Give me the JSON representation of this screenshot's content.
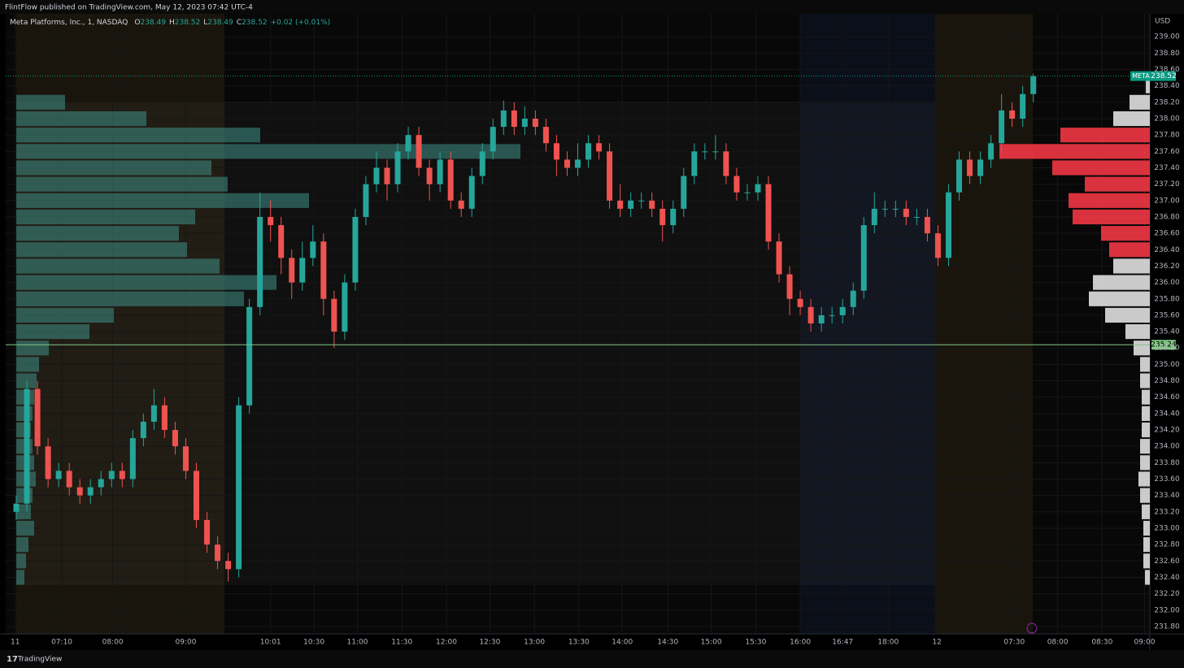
{
  "header": {
    "publisher": "FlintFlow published on TradingView.com, May 12, 2023 07:42 UTC-4"
  },
  "footer": {
    "brand": "TradingView"
  },
  "chart_data": {
    "type": "candlestick",
    "symbol": "Meta Platforms, Inc., 1, NASDAQ",
    "ohlc_legend": [
      {
        "label": "O",
        "value": 238.49
      },
      {
        "label": "H",
        "value": 238.52
      },
      {
        "label": "L",
        "value": 238.49
      },
      {
        "label": "C",
        "value": 238.52
      }
    ],
    "change": "+0.02 (+0.01%)",
    "currency": "USD",
    "open": [
      233.2,
      233.3,
      234.7,
      234.0,
      233.6,
      233.7,
      233.5,
      233.4,
      233.5,
      233.6,
      233.7,
      233.6,
      234.1,
      234.3,
      234.5,
      234.2,
      234.0,
      233.7,
      233.1,
      232.8,
      232.6,
      232.5,
      234.5,
      235.7,
      236.8,
      236.7,
      236.3,
      236.0,
      236.3,
      236.5,
      235.8,
      235.4,
      236.0,
      236.8,
      237.2,
      237.4,
      237.2,
      237.6,
      237.8,
      237.4,
      237.2,
      237.5,
      237.0,
      236.9,
      237.3,
      237.6,
      237.9,
      238.1,
      237.9,
      238.0,
      237.9,
      237.7,
      237.5,
      237.4,
      237.5,
      237.7,
      237.6,
      237.0,
      236.9,
      237.0,
      237.0,
      236.9,
      236.7,
      236.9,
      237.3,
      237.6,
      237.6,
      237.6,
      237.3,
      237.1,
      237.1,
      237.2,
      236.5,
      236.1,
      235.8,
      235.7,
      235.5,
      235.6,
      235.6,
      235.7,
      235.9,
      236.7,
      236.9,
      236.9,
      236.9,
      236.8,
      236.8,
      236.6,
      236.3,
      237.1,
      237.5,
      237.3,
      237.5,
      237.7,
      238.1,
      238.0,
      238.3
    ],
    "high": [
      233.4,
      234.8,
      234.8,
      234.1,
      233.8,
      233.8,
      233.6,
      233.6,
      233.7,
      233.8,
      233.8,
      234.2,
      234.4,
      234.7,
      234.6,
      234.3,
      234.1,
      233.8,
      233.2,
      232.9,
      232.7,
      234.6,
      235.8,
      237.1,
      237.0,
      236.8,
      236.4,
      236.5,
      236.7,
      236.6,
      235.9,
      236.1,
      236.9,
      237.3,
      237.6,
      237.5,
      237.7,
      237.9,
      237.9,
      237.5,
      237.6,
      237.6,
      237.1,
      237.4,
      237.7,
      238.0,
      238.22,
      238.2,
      238.15,
      238.1,
      238.0,
      237.8,
      237.6,
      237.7,
      237.8,
      237.8,
      237.7,
      237.2,
      237.1,
      237.1,
      237.1,
      237.0,
      237.0,
      237.4,
      237.7,
      237.7,
      237.8,
      237.7,
      237.4,
      237.2,
      237.3,
      237.3,
      236.6,
      236.2,
      235.9,
      235.8,
      235.7,
      235.7,
      235.8,
      236.0,
      236.8,
      237.1,
      237.0,
      237.0,
      237.0,
      236.9,
      236.9,
      236.7,
      237.2,
      237.6,
      237.6,
      237.6,
      237.8,
      238.3,
      238.2,
      238.4,
      238.55
    ],
    "low": [
      233.1,
      233.2,
      233.9,
      233.5,
      233.5,
      233.4,
      233.3,
      233.3,
      233.4,
      233.5,
      233.5,
      233.5,
      234.0,
      234.2,
      234.1,
      233.9,
      233.6,
      233.0,
      232.7,
      232.5,
      232.35,
      232.4,
      234.4,
      235.6,
      236.5,
      236.1,
      235.8,
      235.9,
      236.2,
      235.6,
      235.2,
      235.3,
      235.9,
      236.7,
      237.1,
      237.0,
      237.1,
      237.5,
      237.3,
      237.0,
      237.1,
      236.9,
      236.8,
      236.8,
      237.2,
      237.5,
      237.8,
      237.8,
      237.8,
      237.8,
      237.6,
      237.3,
      237.3,
      237.3,
      237.4,
      237.5,
      236.9,
      236.8,
      236.8,
      236.9,
      236.8,
      236.5,
      236.6,
      236.8,
      237.2,
      237.5,
      237.5,
      237.2,
      237.0,
      237.0,
      237.0,
      236.4,
      236.0,
      235.6,
      235.6,
      235.4,
      235.4,
      235.5,
      235.5,
      235.6,
      235.8,
      236.6,
      236.8,
      236.8,
      236.7,
      236.7,
      236.5,
      236.2,
      236.2,
      237.0,
      237.2,
      237.2,
      237.4,
      237.6,
      237.9,
      237.9,
      238.2
    ],
    "close": [
      233.3,
      234.7,
      234.0,
      233.6,
      233.7,
      233.5,
      233.4,
      233.5,
      233.6,
      233.7,
      233.6,
      234.1,
      234.3,
      234.5,
      234.2,
      234.0,
      233.7,
      233.1,
      232.8,
      232.6,
      232.5,
      234.5,
      235.7,
      236.8,
      236.7,
      236.3,
      236.0,
      236.3,
      236.5,
      235.8,
      235.4,
      236.0,
      236.8,
      237.2,
      237.4,
      237.2,
      237.6,
      237.8,
      237.4,
      237.2,
      237.5,
      237.0,
      236.9,
      237.3,
      237.6,
      237.9,
      238.1,
      237.9,
      238.0,
      237.9,
      237.7,
      237.5,
      237.4,
      237.5,
      237.7,
      237.6,
      237.0,
      236.9,
      237.0,
      237.0,
      236.9,
      236.7,
      236.9,
      237.3,
      237.6,
      237.6,
      237.6,
      237.3,
      237.1,
      237.1,
      237.2,
      236.5,
      236.1,
      235.8,
      235.7,
      235.5,
      235.6,
      235.6,
      235.7,
      235.9,
      236.7,
      236.9,
      236.9,
      236.9,
      236.8,
      236.8,
      236.6,
      236.3,
      237.1,
      237.5,
      237.3,
      237.5,
      237.7,
      238.1,
      238.0,
      238.3,
      238.52
    ],
    "up_color": "#26a69a",
    "down_color": "#ef5350",
    "xlim": [
      -1,
      107
    ],
    "xticks": [
      {
        "value": -0.1,
        "label": "11"
      },
      {
        "value": 4.3,
        "label": "07:10"
      },
      {
        "value": 9.1,
        "label": "08:00"
      },
      {
        "value": 16.0,
        "label": "09:00"
      },
      {
        "value": 24.0,
        "label": "10:01"
      },
      {
        "value": 28.1,
        "label": "10:30"
      },
      {
        "value": 32.2,
        "label": "11:00"
      },
      {
        "value": 36.4,
        "label": "11:30"
      },
      {
        "value": 40.6,
        "label": "12:00"
      },
      {
        "value": 44.7,
        "label": "12:30"
      },
      {
        "value": 48.9,
        "label": "13:00"
      },
      {
        "value": 53.1,
        "label": "13:30"
      },
      {
        "value": 57.2,
        "label": "14:00"
      },
      {
        "value": 61.5,
        "label": "14:30"
      },
      {
        "value": 65.6,
        "label": "15:00"
      },
      {
        "value": 69.8,
        "label": "15:30"
      },
      {
        "value": 74.0,
        "label": "16:00"
      },
      {
        "value": 78.0,
        "label": "16:47"
      },
      {
        "value": 82.3,
        "label": "18:00"
      },
      {
        "value": 86.9,
        "label": "12"
      },
      {
        "value": 94.2,
        "label": "07:30"
      },
      {
        "value": 98.3,
        "label": "08:00"
      },
      {
        "value": 102.5,
        "label": "08:30"
      },
      {
        "value": 106.5,
        "label": "09:00"
      }
    ],
    "ylim": [
      231.71,
      239.28
    ],
    "yticks": [
      {
        "value": 231.8,
        "label": "231.80"
      },
      {
        "value": 232.0,
        "label": "232.00"
      },
      {
        "value": 232.2,
        "label": "232.20"
      },
      {
        "value": 232.4,
        "label": "232.40"
      },
      {
        "value": 232.6,
        "label": "232.60"
      },
      {
        "value": 232.8,
        "label": "232.80"
      },
      {
        "value": 233.0,
        "label": "233.00"
      },
      {
        "value": 233.2,
        "label": "233.20"
      },
      {
        "value": 233.4,
        "label": "233.40"
      },
      {
        "value": 233.6,
        "label": "233.60"
      },
      {
        "value": 233.8,
        "label": "233.80"
      },
      {
        "value": 234.0,
        "label": "234.00"
      },
      {
        "value": 234.2,
        "label": "234.20"
      },
      {
        "value": 234.4,
        "label": "234.40"
      },
      {
        "value": 234.6,
        "label": "234.60"
      },
      {
        "value": 234.8,
        "label": "234.80"
      },
      {
        "value": 235.0,
        "label": "235.00"
      },
      {
        "value": 235.2,
        "label": "235.20"
      },
      {
        "value": 235.4,
        "label": "235.40"
      },
      {
        "value": 235.6,
        "label": "235.60"
      },
      {
        "value": 235.8,
        "label": "235.80"
      },
      {
        "value": 236.0,
        "label": "236.00"
      },
      {
        "value": 236.2,
        "label": "236.20"
      },
      {
        "value": 236.4,
        "label": "236.40"
      },
      {
        "value": 236.6,
        "label": "236.60"
      },
      {
        "value": 236.8,
        "label": "236.80"
      },
      {
        "value": 237.0,
        "label": "237.00"
      },
      {
        "value": 237.2,
        "label": "237.20"
      },
      {
        "value": 237.4,
        "label": "237.40"
      },
      {
        "value": 237.6,
        "label": "237.60"
      },
      {
        "value": 237.8,
        "label": "237.80"
      },
      {
        "value": 238.0,
        "label": "238.00"
      },
      {
        "value": 238.2,
        "label": "238.20"
      },
      {
        "value": 238.4,
        "label": "238.40"
      },
      {
        "value": 238.6,
        "label": "238.60"
      },
      {
        "value": 238.8,
        "label": "238.80"
      },
      {
        "value": 239.0,
        "label": "239.00"
      }
    ],
    "grid": true,
    "last_price": {
      "label": "META",
      "value": 238.52,
      "color": "#089981"
    },
    "horizontal_line": {
      "value": 235.24,
      "color": "#81c784"
    },
    "volume_profiles": [
      {
        "side": "left",
        "groups": [
          {
            "color": "#3f8f86",
            "levels": [
              232.4,
              232.6,
              232.8,
              233.0,
              233.2,
              233.4,
              233.6,
              233.8,
              234.0,
              234.2,
              234.4,
              234.6,
              234.8,
              235.0,
              235.2,
              235.4,
              235.6,
              235.8,
              236.0,
              236.2,
              236.4,
              236.6,
              236.8,
              237.0,
              237.2,
              237.4,
              237.6,
              237.8,
              238.0,
              238.2
            ],
            "volumes": [
              10,
              12,
              15,
              22,
              18,
              20,
              24,
              22,
              20,
              18,
              20,
              22,
              25,
              28,
              40,
              90,
              120,
              280,
              320,
              250,
              210,
              200,
              220,
              360,
              260,
              240,
              620,
              300,
              160,
              60
            ]
          }
        ]
      },
      {
        "side": "right",
        "groups": [
          {
            "color": "#f23645",
            "levels": [
              236.4,
              236.6,
              236.8,
              237.0,
              237.2,
              237.4,
              237.6,
              237.8
            ],
            "volumes": [
              50,
              60,
              95,
              100,
              80,
              120,
              185,
              110
            ]
          },
          {
            "color": "#e0e0e0",
            "levels": [
              232.4,
              232.6,
              232.8,
              233.0,
              233.2,
              233.4,
              233.6,
              233.8,
              234.0,
              234.2,
              234.4,
              234.6,
              234.8,
              235.0,
              235.2,
              235.4,
              235.6,
              235.8,
              236.0,
              236.2,
              238.0,
              238.2,
              238.4
            ],
            "volumes": [
              6,
              8,
              8,
              8,
              10,
              12,
              14,
              12,
              12,
              10,
              10,
              10,
              12,
              12,
              20,
              30,
              55,
              75,
              70,
              45,
              45,
              25,
              5
            ]
          }
        ]
      }
    ]
  }
}
